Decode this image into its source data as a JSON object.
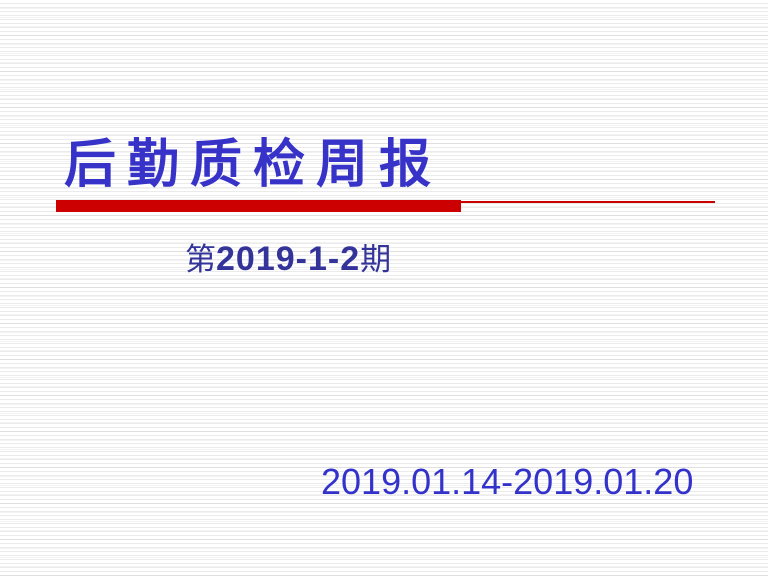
{
  "slide": {
    "title": "后勤质检周报",
    "issue": {
      "prefix": "第",
      "number": "2019-1-2",
      "suffix": "期"
    },
    "date_range": "2019.01.14-2019.01.20",
    "colors": {
      "title_blue": "#3833c8",
      "issue_blue": "#333399",
      "date_blue": "#3333cc",
      "accent_red": "#cc0000",
      "stripe_gray": "#ebebeb"
    }
  }
}
